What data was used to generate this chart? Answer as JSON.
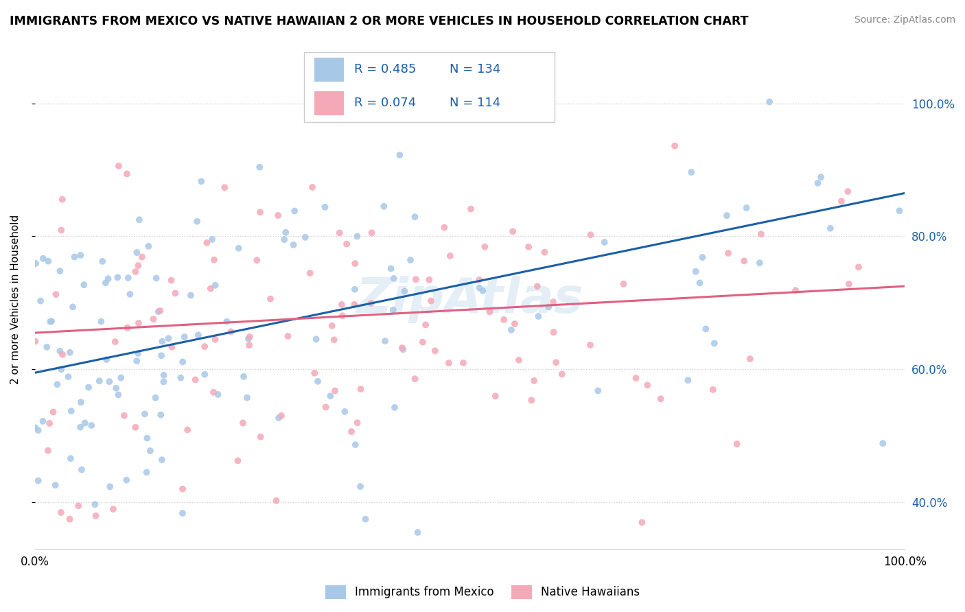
{
  "title": "IMMIGRANTS FROM MEXICO VS NATIVE HAWAIIAN 2 OR MORE VEHICLES IN HOUSEHOLD CORRELATION CHART",
  "source": "Source: ZipAtlas.com",
  "ylabel": "2 or more Vehicles in Household",
  "blue_R": 0.485,
  "blue_N": 134,
  "pink_R": 0.074,
  "pink_N": 114,
  "blue_color": "#a8c8e8",
  "pink_color": "#f4a8b8",
  "blue_line_color": "#1a5fa8",
  "pink_line_color": "#e06080",
  "tick_color": "#1a5fa8",
  "watermark_color": "#c8dff0",
  "y_tick_vals": [
    0.4,
    0.6,
    0.8,
    1.0
  ],
  "y_tick_labels": [
    "40.0%",
    "60.0%",
    "80.0%",
    "100.0%"
  ],
  "xlim": [
    0.0,
    1.0
  ],
  "ylim": [
    0.33,
    1.08
  ],
  "blue_line_x0": 0.0,
  "blue_line_y0": 0.595,
  "blue_line_x1": 1.0,
  "blue_line_y1": 0.865,
  "pink_line_x0": 0.0,
  "pink_line_y0": 0.655,
  "pink_line_x1": 1.0,
  "pink_line_y1": 0.725,
  "legend_label_blue": "Immigrants from Mexico",
  "legend_label_pink": "Native Hawaiians"
}
